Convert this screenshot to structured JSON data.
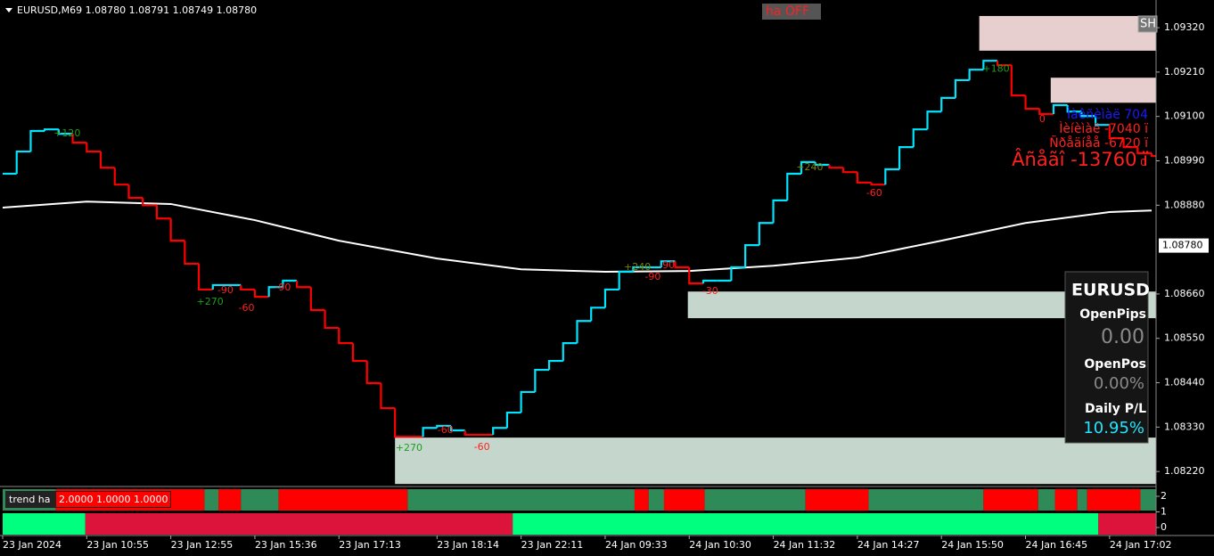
{
  "chart_data": {
    "type": "line",
    "step": true,
    "header": "EURUSD,M69  1.08780 1.08791 1.08749 1.08780",
    "ha_toggle": "ha OFF",
    "button": "SH",
    "ylim": [
      1.08185,
      1.09382
    ],
    "yticks": [
      {
        "value": 1.0932,
        "label": "1.09320"
      },
      {
        "value": 1.0921,
        "label": "1.09210"
      },
      {
        "value": 1.091,
        "label": "1.09100"
      },
      {
        "value": 1.0899,
        "label": "1.08990"
      },
      {
        "value": 1.0888,
        "label": "1.08880"
      },
      {
        "value": 1.0866,
        "label": "1.08660"
      },
      {
        "value": 1.0855,
        "label": "1.08550"
      },
      {
        "value": 1.0844,
        "label": "1.08440"
      },
      {
        "value": 1.0833,
        "label": "1.08330"
      },
      {
        "value": 1.0822,
        "label": "1.08220"
      }
    ],
    "current_price": {
      "value": 1.0878,
      "label": "1.08780"
    },
    "categories": [
      "23 Jan 2024",
      null,
      null,
      null,
      null,
      null,
      "23 Jan 10:55",
      null,
      null,
      null,
      null,
      null,
      "23 Jan 12:55",
      null,
      null,
      null,
      null,
      null,
      "23 Jan 15:36",
      null,
      null,
      null,
      null,
      null,
      "23 Jan 17:13",
      null,
      null,
      null,
      null,
      null,
      null,
      "23 Jan 18:14",
      null,
      null,
      null,
      null,
      null,
      "23 Jan 22:11",
      null,
      null,
      null,
      null,
      null,
      "24 Jan 09:33",
      null,
      null,
      null,
      null,
      null,
      "24 Jan 10:30",
      null,
      null,
      null,
      null,
      null,
      "24 Jan 11:32",
      null,
      null,
      null,
      null,
      null,
      "24 Jan 14:27",
      null,
      null,
      null,
      null,
      null,
      "24 Jan 15:50",
      null,
      null,
      null,
      null,
      null,
      "24 Jan 16:45",
      null,
      null,
      null,
      null,
      null,
      "24 Jan 17:02",
      null,
      null,
      null
    ],
    "series": [
      {
        "values": [
          1.08958,
          1.09013,
          1.09064,
          1.09068,
          1.09057,
          1.09035,
          1.09013,
          1.08973,
          1.08931,
          1.08898,
          1.0888,
          1.08847,
          1.08792,
          1.08735,
          1.08671,
          1.08682,
          1.08682,
          1.08671,
          1.08653,
          1.08677,
          1.08693,
          1.08677,
          1.0862,
          1.08576,
          1.08538,
          1.08494,
          1.08439,
          1.08377,
          1.08306,
          1.08306,
          1.08328,
          1.08333,
          1.08322,
          1.08311,
          1.08311,
          1.08328,
          1.08366,
          1.08417,
          1.08472,
          1.08494,
          1.08538,
          1.08593,
          1.08626,
          1.08671,
          1.08715,
          1.08726,
          1.08726,
          1.08741,
          1.08726,
          1.08686,
          1.08693,
          1.08693,
          1.08726,
          1.08781,
          1.08836,
          1.08892,
          1.08958,
          1.08987,
          1.0898,
          1.08973,
          1.08962,
          1.08936,
          1.08931,
          1.08969,
          1.09024,
          1.09068,
          1.09112,
          1.09146,
          1.0919,
          1.09216,
          1.09238,
          1.09227,
          1.09152,
          1.09119,
          1.09106,
          1.09128,
          1.09112,
          1.09101,
          1.09079,
          1.09046,
          1.09024,
          1.09009,
          1.09002
        ],
        "colors": [
          "#00e5ff",
          "#00e5ff",
          "#00e5ff",
          "#00e5ff",
          "#00e5ff",
          "#ff0000",
          "#ff0000",
          "#ff0000",
          "#ff0000",
          "#ff0000",
          "#ff0000",
          "#ff0000",
          "#ff0000",
          "#ff0000",
          "#ff0000",
          "#00e5ff",
          "#00e5ff",
          "#ff0000",
          "#ff0000",
          "#00e5ff",
          "#00e5ff",
          "#ff0000",
          "#ff0000",
          "#ff0000",
          "#ff0000",
          "#ff0000",
          "#ff0000",
          "#ff0000",
          "#ff0000",
          "#ff0000",
          "#00e5ff",
          "#00e5ff",
          "#00e5ff",
          "#ff0000",
          "#ff0000",
          "#00e5ff",
          "#00e5ff",
          "#00e5ff",
          "#00e5ff",
          "#00e5ff",
          "#00e5ff",
          "#00e5ff",
          "#00e5ff",
          "#00e5ff",
          "#00e5ff",
          "#00e5ff",
          "#00e5ff",
          "#00e5ff",
          "#ff0000",
          "#ff0000",
          "#00e5ff",
          "#00e5ff",
          "#00e5ff",
          "#00e5ff",
          "#00e5ff",
          "#00e5ff",
          "#00e5ff",
          "#00e5ff",
          "#00e5ff",
          "#ff0000",
          "#ff0000",
          "#ff0000",
          "#ff0000",
          "#00e5ff",
          "#00e5ff",
          "#00e5ff",
          "#00e5ff",
          "#00e5ff",
          "#00e5ff",
          "#00e5ff",
          "#00e5ff",
          "#ff0000",
          "#ff0000",
          "#ff0000",
          "#ff0000",
          "#00e5ff",
          "#00e5ff",
          "#00e5ff",
          "#00e5ff",
          "#ff0000",
          "#ff0000",
          "#ff0000",
          "#ff0000"
        ]
      },
      {
        "color": "#ffffff",
        "x": [
          0,
          6,
          12,
          18,
          24,
          31,
          37,
          43,
          49,
          55,
          61,
          67,
          73,
          79,
          82
        ],
        "values": [
          1.08874,
          1.08889,
          1.08883,
          1.08843,
          1.08792,
          1.08748,
          1.08721,
          1.08715,
          1.08717,
          1.0873,
          1.0875,
          1.08792,
          1.08836,
          1.08863,
          1.08867
        ]
      }
    ],
    "zones": [
      {
        "from": 69.7,
        "top": 1.09349,
        "bottom": 1.09263,
        "color": "#e8cfcf"
      },
      {
        "from": 74.8,
        "top": 1.09196,
        "bottom": 1.09134,
        "color": "#e8cfcf"
      },
      {
        "from": 48.9,
        "top": 1.08666,
        "bottom": 1.086,
        "color": "#c5d6cc"
      },
      {
        "from": 28,
        "top": 1.08304,
        "bottom": 1.08189,
        "color": "#c5d6cc"
      }
    ],
    "annotations": [
      {
        "text": "+120",
        "index": 4.6,
        "price": 1.09057,
        "color": "#1e9e1e"
      },
      {
        "text": "+270",
        "index": 14.8,
        "price": 1.0864,
        "color": "#1e9e1e"
      },
      {
        "text": "-90",
        "index": 15.9,
        "price": 1.08669,
        "color": "#ff2020"
      },
      {
        "text": "-60",
        "index": 17.4,
        "price": 1.08624,
        "color": "#ff2020"
      },
      {
        "text": "-90",
        "index": 20,
        "price": 1.08675,
        "color": "#ff2020"
      },
      {
        "text": "+270",
        "index": 29,
        "price": 1.08278,
        "color": "#1e9e1e"
      },
      {
        "text": "-60",
        "index": 31.6,
        "price": 1.08322,
        "color": "#ff2020"
      },
      {
        "text": "-60",
        "index": 34.2,
        "price": 1.0828,
        "color": "#ff2020"
      },
      {
        "text": "+240",
        "index": 45.3,
        "price": 1.08726,
        "color": "#808000"
      },
      {
        "text": "-90",
        "index": 46.4,
        "price": 1.08702,
        "color": "#ff2020"
      },
      {
        "text": "-90",
        "index": 47.4,
        "price": 1.0873,
        "color": "#ff2020"
      },
      {
        "text": "-30",
        "index": 50.5,
        "price": 1.08666,
        "color": "#ff2020"
      },
      {
        "text": "+240",
        "index": 57.6,
        "price": 1.08973,
        "color": "#808000"
      },
      {
        "text": "-60",
        "index": 62.2,
        "price": 1.08909,
        "color": "#ff2020"
      },
      {
        "text": "+180",
        "index": 70.9,
        "price": 1.09218,
        "color": "#1e9e1e"
      },
      {
        "text": "0",
        "index": 74.2,
        "price": 1.09093,
        "color": "#ff2020"
      },
      {
        "text": "0",
        "index": 81.4,
        "price": 1.08984,
        "color": "#ff2020"
      }
    ],
    "stats": [
      {
        "text": "Ìàêñèìàë 704",
        "color": "#1a1aff"
      },
      {
        "text": "Ìèíèìàë -7040 ï",
        "color": "#ff2020"
      },
      {
        "text": "Ñðåäíåå -6720 ï",
        "color": "#ff2020"
      },
      {
        "text": "Âñåãî -13760 ï",
        "color": "#ff2020"
      }
    ],
    "panel": {
      "symbol": "EURUSD",
      "rows": [
        {
          "label": "OpenPips",
          "value": "0.00",
          "color": "#8a8a8a"
        },
        {
          "label": "OpenPos",
          "value": "0.00%",
          "color": "#8a8a8a"
        },
        {
          "label": "Daily P/L",
          "value": "10.95%",
          "color": "#22e5ff"
        }
      ]
    },
    "indicator": {
      "name": "trend ha",
      "params": "2.0000 1.0000 1.0000",
      "ylim": [
        0,
        2
      ],
      "yticks": [
        2,
        1,
        0
      ],
      "rows": [
        {
          "runs": [
            {
              "from": 0,
              "to": 3.8,
              "color": "#2e8b57"
            },
            {
              "from": 3.8,
              "to": 14.4,
              "color": "#ff0000"
            },
            {
              "from": 14.4,
              "to": 15.4,
              "color": "#2e8b57"
            },
            {
              "from": 15.4,
              "to": 17,
              "color": "#ff0000"
            },
            {
              "from": 17,
              "to": 19.7,
              "color": "#2e8b57"
            },
            {
              "from": 19.7,
              "to": 28.9,
              "color": "#ff0000"
            },
            {
              "from": 28.9,
              "to": 45.1,
              "color": "#2e8b57"
            },
            {
              "from": 45.1,
              "to": 46.1,
              "color": "#ff0000"
            },
            {
              "from": 46.1,
              "to": 47.2,
              "color": "#2e8b57"
            },
            {
              "from": 47.2,
              "to": 50.1,
              "color": "#ff0000"
            },
            {
              "from": 50.1,
              "to": 57.3,
              "color": "#2e8b57"
            },
            {
              "from": 57.3,
              "to": 61.8,
              "color": "#ff0000"
            },
            {
              "from": 61.8,
              "to": 70,
              "color": "#2e8b57"
            },
            {
              "from": 70,
              "to": 73.9,
              "color": "#ff0000"
            },
            {
              "from": 73.9,
              "to": 75.1,
              "color": "#2e8b57"
            },
            {
              "from": 75.1,
              "to": 76.7,
              "color": "#ff0000"
            },
            {
              "from": 76.7,
              "to": 77.4,
              "color": "#2e8b57"
            },
            {
              "from": 77.4,
              "to": 81.2,
              "color": "#ff0000"
            },
            {
              "from": 81.2,
              "to": 82.3,
              "color": "#2e8b57"
            }
          ]
        },
        {
          "runs": [
            {
              "from": 0,
              "to": 5.9,
              "color": "#00ff7f"
            },
            {
              "from": 5.9,
              "to": 36.4,
              "color": "#dc143c"
            },
            {
              "from": 36.4,
              "to": 78.2,
              "color": "#00ff7f"
            },
            {
              "from": 78.2,
              "to": 82.3,
              "color": "#dc143c"
            }
          ]
        }
      ]
    }
  }
}
